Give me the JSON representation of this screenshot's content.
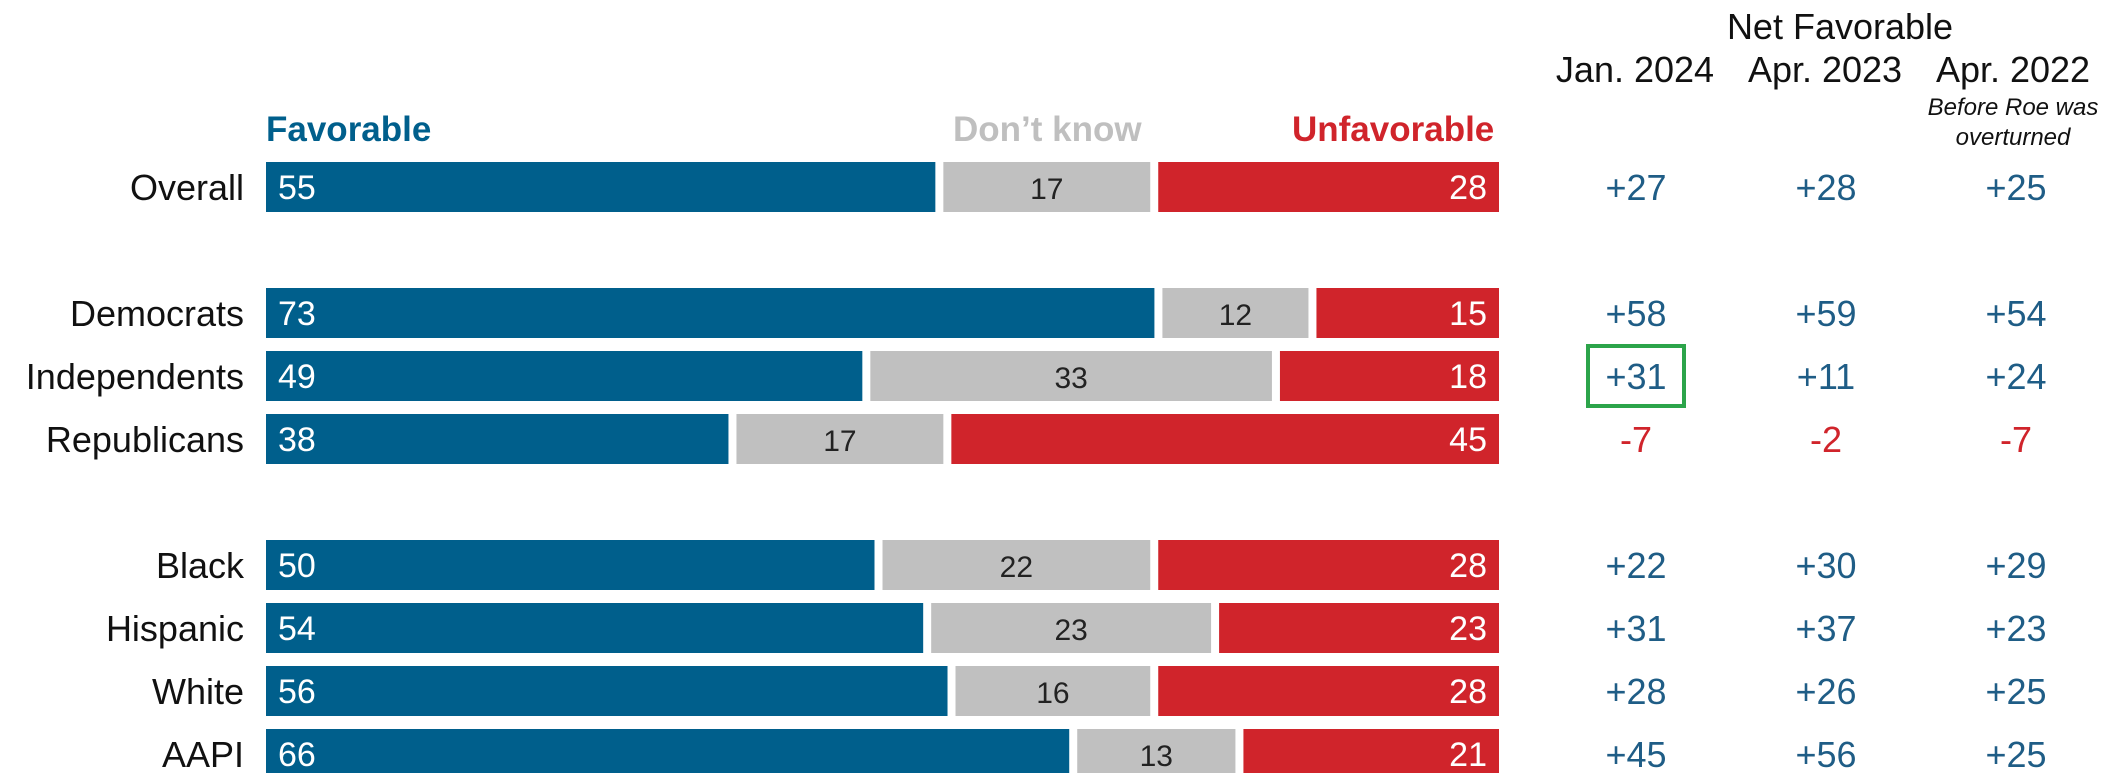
{
  "colors": {
    "favorable": "#005f8c",
    "dont_know": "#c0c0c0",
    "unfavorable": "#d0242b",
    "net_positive": "#1f5d86",
    "net_negative": "#d0242b",
    "highlight_box": "#2ca44a",
    "legend_dont_know": "#bfbfbf"
  },
  "legend": {
    "favorable": "Favorable",
    "dont_know": "Don’t know",
    "unfavorable": "Unfavorable"
  },
  "net_header": {
    "title": "Net Favorable",
    "columns": [
      "Jan. 2024",
      "Apr. 2023",
      "Apr. 2022"
    ],
    "note_line1": "Before Roe was",
    "note_line2": "overturned"
  },
  "chart_data": {
    "type": "bar",
    "stacked": true,
    "orientation": "horizontal",
    "categories": [
      "Overall",
      "Democrats",
      "Independents",
      "Republicans",
      "Black",
      "Hispanic",
      "White",
      "AAPI"
    ],
    "series": [
      {
        "name": "Favorable",
        "values": [
          55,
          73,
          49,
          38,
          50,
          54,
          56,
          66
        ]
      },
      {
        "name": "Don’t know",
        "values": [
          17,
          12,
          33,
          17,
          22,
          23,
          16,
          13
        ]
      },
      {
        "name": "Unfavorable",
        "values": [
          28,
          15,
          18,
          45,
          28,
          23,
          28,
          21
        ]
      }
    ],
    "net_favorable": {
      "columns": [
        "Jan. 2024",
        "Apr. 2023",
        "Apr. 2022"
      ],
      "values": [
        [
          "+27",
          "+28",
          "+25"
        ],
        [
          "+58",
          "+59",
          "+54"
        ],
        [
          "+31",
          "+11",
          "+24"
        ],
        [
          "-7",
          "-2",
          "-7"
        ],
        [
          "+22",
          "+30",
          "+29"
        ],
        [
          "+31",
          "+37",
          "+23"
        ],
        [
          "+28",
          "+26",
          "+25"
        ],
        [
          "+45",
          "+56",
          "+25"
        ]
      ],
      "highlighted": {
        "category": "Independents",
        "column": "Jan. 2024"
      }
    }
  }
}
